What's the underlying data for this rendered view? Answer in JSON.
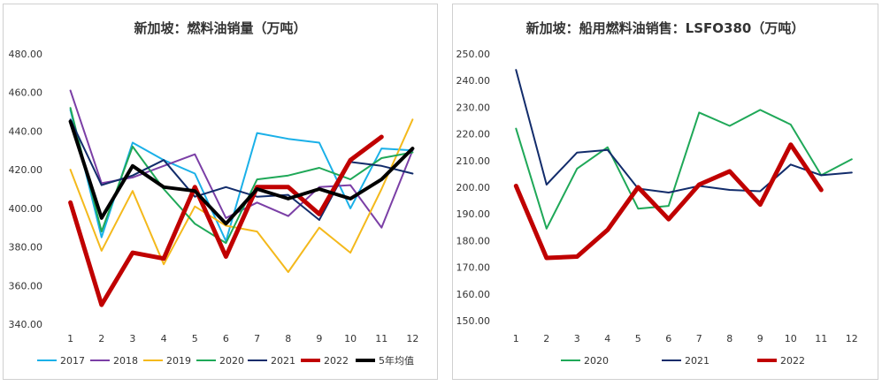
{
  "chart_data": [
    {
      "type": "line",
      "title": "新加坡：燃料油销量（万吨）",
      "categories": [
        "1",
        "2",
        "3",
        "4",
        "5",
        "6",
        "7",
        "8",
        "9",
        "10",
        "11",
        "12"
      ],
      "ylim": [
        340,
        480
      ],
      "yticks": [
        "340.00",
        "360.00",
        "380.00",
        "400.00",
        "420.00",
        "440.00",
        "460.00",
        "480.00"
      ],
      "grid": false,
      "legend_position": "bottom",
      "series": [
        {
          "name": "2017",
          "color": "#1ab0e8",
          "width": 2,
          "values": [
            451,
            385,
            434,
            425,
            418,
            383,
            439,
            436,
            434,
            400,
            431,
            430
          ]
        },
        {
          "name": "2018",
          "color": "#7b3fa6",
          "width": 2,
          "values": [
            461,
            413,
            416,
            422,
            428,
            395,
            403,
            396,
            411,
            412,
            390,
            430
          ]
        },
        {
          "name": "2019",
          "color": "#f4b91c",
          "width": 2,
          "values": [
            420,
            378,
            409,
            371,
            401,
            391,
            388,
            367,
            390,
            377,
            410,
            446
          ]
        },
        {
          "name": "2020",
          "color": "#1fa858",
          "width": 2,
          "values": [
            452,
            388,
            432,
            410,
            392,
            382,
            415,
            417,
            421,
            415,
            426,
            429
          ]
        },
        {
          "name": "2021",
          "color": "#122c6b",
          "width": 2,
          "values": [
            446,
            412,
            417,
            425,
            406,
            411,
            406,
            407,
            394,
            424,
            422,
            418
          ]
        },
        {
          "name": "2022",
          "color": "#c00000",
          "width": 5,
          "values": [
            403,
            350,
            377,
            374,
            411,
            375,
            411,
            411,
            397,
            425,
            437,
            null
          ]
        },
        {
          "name": "5年均值",
          "color": "#000000",
          "width": 4,
          "values": [
            445,
            395,
            422,
            411,
            409,
            392,
            410,
            405,
            410,
            405,
            415,
            431
          ]
        }
      ]
    },
    {
      "type": "line",
      "title": "新加坡：船用燃料油销售：LSFO380（万吨）",
      "categories": [
        "1",
        "2",
        "3",
        "4",
        "5",
        "6",
        "7",
        "8",
        "9",
        "10",
        "11",
        "12"
      ],
      "ylim": [
        150,
        250
      ],
      "yticks": [
        "150.00",
        "160.00",
        "170.00",
        "180.00",
        "190.00",
        "200.00",
        "210.00",
        "220.00",
        "230.00",
        "240.00",
        "250.00"
      ],
      "grid": false,
      "legend_position": "bottom",
      "series": [
        {
          "name": "2020",
          "color": "#1fa858",
          "width": 2,
          "values": [
            222,
            184.5,
            207,
            215,
            192,
            193,
            228,
            223,
            229,
            223.5,
            204.5,
            210.5
          ]
        },
        {
          "name": "2021",
          "color": "#122c6b",
          "width": 2,
          "values": [
            244,
            201,
            213,
            214,
            199.5,
            198,
            200.5,
            199,
            198.5,
            208.5,
            204.5,
            205.5
          ]
        },
        {
          "name": "2022",
          "color": "#c00000",
          "width": 5,
          "values": [
            200.5,
            173.5,
            174,
            184,
            200,
            188,
            201,
            206,
            193.5,
            216,
            199,
            null
          ]
        }
      ]
    }
  ]
}
